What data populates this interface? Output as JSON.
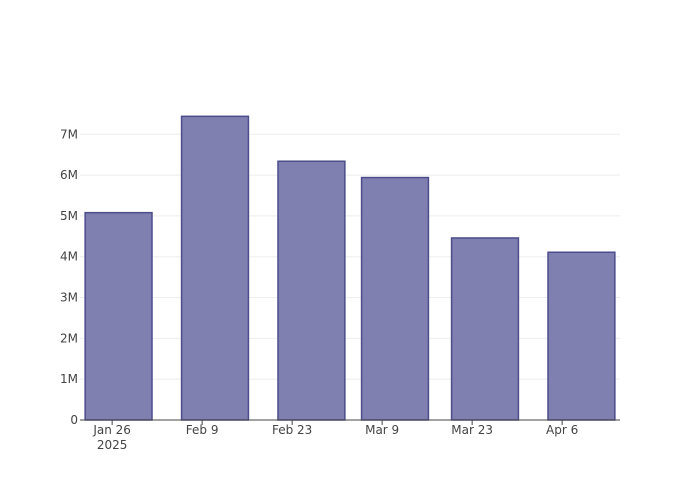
{
  "chart_data": {
    "type": "bar",
    "x": [
      "2025-01-27",
      "2025-02-11",
      "2025-02-26",
      "2025-03-11",
      "2025-03-25",
      "2025-04-09"
    ],
    "values": [
      5080000,
      7440000,
      6340000,
      5940000,
      4460000,
      4110000
    ],
    "color": "#7f7fb0",
    "edge_color": "#4d4d8c",
    "xlim": [
      "2025-01-21",
      "2025-04-15"
    ],
    "xticks": [
      {
        "value": "2025-01-26",
        "label": "Jan 26\n2025"
      },
      {
        "value": "2025-02-09",
        "label": "Feb 9"
      },
      {
        "value": "2025-02-23",
        "label": "Feb 23"
      },
      {
        "value": "2025-03-09",
        "label": "Mar 9"
      },
      {
        "value": "2025-03-23",
        "label": "Mar 23"
      },
      {
        "value": "2025-04-06",
        "label": "Apr 6"
      }
    ],
    "ylim": [
      0,
      7840000
    ],
    "yticks": [
      0,
      {
        "value": 1000000,
        "label": "1M"
      },
      {
        "value": 2000000,
        "label": "2M"
      },
      {
        "value": 3000000,
        "label": "3M"
      },
      {
        "value": 4000000,
        "label": "4M"
      },
      {
        "value": 5000000,
        "label": "5M"
      },
      {
        "value": 6000000,
        "label": "6M"
      },
      {
        "value": 7000000,
        "label": "7M"
      }
    ],
    "grid": true
  }
}
